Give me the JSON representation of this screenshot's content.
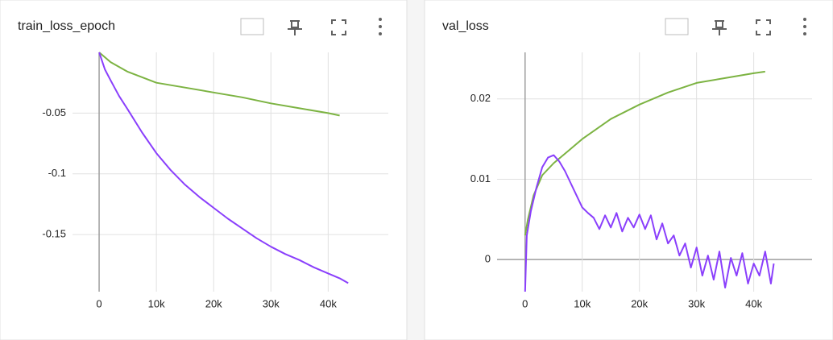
{
  "chart_data": [
    {
      "type": "line",
      "title": "train_loss_epoch",
      "xlim": [
        -4650,
        50500
      ],
      "ylim": [
        -0.197,
        0
      ],
      "xticks": [
        0,
        {
          "value": 10000,
          "label": "10k"
        },
        {
          "value": 20000,
          "label": "20k"
        },
        {
          "value": 30000,
          "label": "30k"
        },
        {
          "value": 40000,
          "label": "40k"
        }
      ],
      "yticks": [
        -0.05,
        -0.1,
        -0.15
      ],
      "grid": true,
      "series": [
        {
          "color": "#7cb342",
          "x": [
            0,
            2000,
            5000,
            10000,
            15000,
            20000,
            25000,
            30000,
            35000,
            40000,
            42000
          ],
          "values": [
            0,
            -0.008,
            -0.016,
            -0.025,
            -0.029,
            -0.033,
            -0.037,
            -0.042,
            -0.046,
            -0.05,
            -0.052
          ]
        },
        {
          "color": "#8a3ffc",
          "x": [
            0,
            1000,
            2000,
            3500,
            5000,
            7500,
            10000,
            12500,
            15000,
            17500,
            20000,
            22500,
            25000,
            27500,
            30000,
            32500,
            35000,
            37500,
            40000,
            42000,
            43500
          ],
          "values": [
            0,
            -0.014,
            -0.023,
            -0.036,
            -0.047,
            -0.066,
            -0.083,
            -0.097,
            -0.109,
            -0.119,
            -0.128,
            -0.137,
            -0.145,
            -0.153,
            -0.16,
            -0.166,
            -0.171,
            -0.177,
            -0.182,
            -0.186,
            -0.19
          ]
        }
      ]
    },
    {
      "type": "line",
      "title": "val_loss",
      "xlim": [
        -4900,
        50200
      ],
      "ylim": [
        -0.004,
        0.0258
      ],
      "xticks": [
        0,
        {
          "value": 10000,
          "label": "10k"
        },
        {
          "value": 20000,
          "label": "20k"
        },
        {
          "value": 30000,
          "label": "30k"
        },
        {
          "value": 40000,
          "label": "40k"
        }
      ],
      "yticks": [
        0,
        0.01,
        0.02
      ],
      "grid": true,
      "series": [
        {
          "color": "#7cb342",
          "x": [
            0,
            500,
            1500,
            3000,
            5000,
            7500,
            10000,
            15000,
            20000,
            25000,
            30000,
            35000,
            40000,
            42000
          ],
          "values": [
            0.003,
            0.005,
            0.008,
            0.0105,
            0.012,
            0.0135,
            0.015,
            0.0175,
            0.0193,
            0.0208,
            0.022,
            0.0226,
            0.0232,
            0.0234
          ]
        },
        {
          "color": "#8a3ffc",
          "x": [
            0,
            300,
            1000,
            2000,
            3000,
            4000,
            5000,
            6000,
            7000,
            8000,
            9000,
            10000,
            11000,
            12000,
            13000,
            14000,
            15000,
            16000,
            17000,
            18000,
            19000,
            20000,
            21000,
            22000,
            23000,
            24000,
            25000,
            26000,
            27000,
            28000,
            29000,
            30000,
            31000,
            32000,
            33000,
            34000,
            35000,
            36000,
            37000,
            38000,
            39000,
            40000,
            41000,
            42000,
            43000,
            43500
          ],
          "values": [
            -0.004,
            0.003,
            0.006,
            0.009,
            0.0115,
            0.0127,
            0.013,
            0.0122,
            0.011,
            0.0095,
            0.008,
            0.0065,
            0.0058,
            0.0052,
            0.0038,
            0.0055,
            0.004,
            0.0058,
            0.0035,
            0.0052,
            0.004,
            0.0056,
            0.0038,
            0.0055,
            0.0025,
            0.0045,
            0.002,
            0.003,
            0.0005,
            0.002,
            -0.001,
            0.0015,
            -0.002,
            0.0005,
            -0.0025,
            0.001,
            -0.0035,
            0.0002,
            -0.002,
            0.0008,
            -0.003,
            -0.0005,
            -0.002,
            0.001,
            -0.003,
            -0.0005
          ]
        }
      ]
    }
  ]
}
